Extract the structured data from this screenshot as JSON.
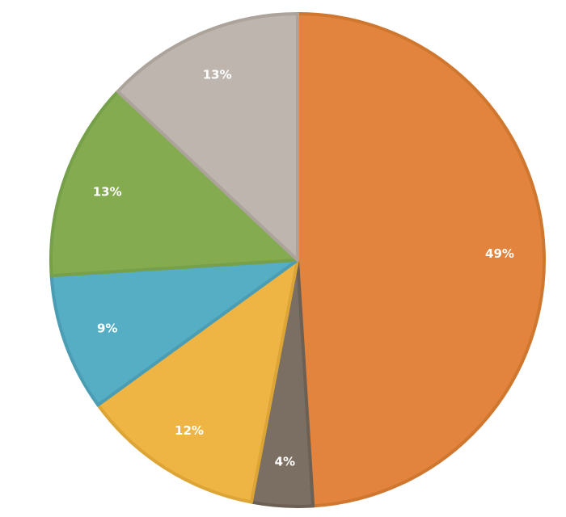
{
  "chart_data": {
    "type": "pie",
    "title": "",
    "start_angle_deg": 0,
    "direction": "clockwise",
    "slices": [
      {
        "value": 49,
        "label": "49%",
        "color": "#E2843D",
        "edge": "#D0772F"
      },
      {
        "value": 4,
        "label": "4%",
        "color": "#7B6F63",
        "edge": "#6C6054"
      },
      {
        "value": 12,
        "label": "12%",
        "color": "#EEB544",
        "edge": "#DCA535"
      },
      {
        "value": 9,
        "label": "9%",
        "color": "#56AEC5",
        "edge": "#4A9DB3"
      },
      {
        "value": 13,
        "label": "13%",
        "color": "#84AB4F",
        "edge": "#76A04A"
      },
      {
        "value": 13,
        "label": "13%",
        "color": "#BDB5AE",
        "edge": "#ACA39B"
      }
    ]
  }
}
